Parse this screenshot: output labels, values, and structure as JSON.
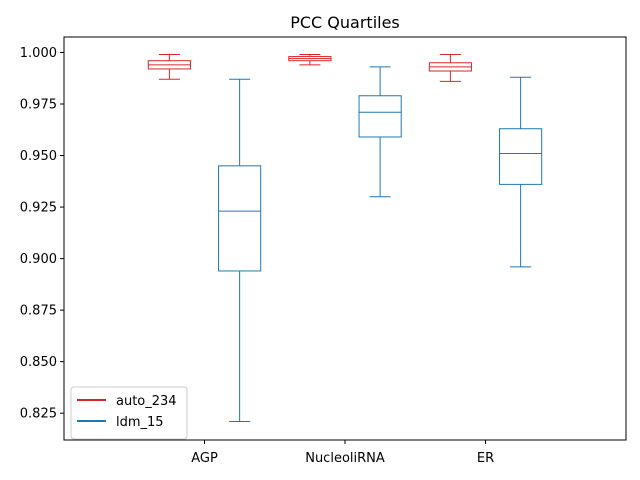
{
  "chart_data": {
    "type": "box",
    "title": "PCC Quartiles",
    "xlabel": "",
    "ylabel": "",
    "ylim": [
      0.812,
      1.0075
    ],
    "y_ticks": [
      0.825,
      0.85,
      0.875,
      0.9,
      0.925,
      0.95,
      0.975,
      1.0
    ],
    "y_tick_labels": [
      "0.825",
      "0.850",
      "0.875",
      "0.900",
      "0.925",
      "0.950",
      "0.975",
      "1.000"
    ],
    "categories": [
      "AGP",
      "NucleoliRNA",
      "ER"
    ],
    "grid": false,
    "legend_position": "bottom-left",
    "series": [
      {
        "name": "auto_234",
        "color": "#d62728",
        "boxes": [
          {
            "whislo": 0.987,
            "q1": 0.992,
            "med": 0.994,
            "q3": 0.996,
            "whishi": 0.999
          },
          {
            "whislo": 0.994,
            "q1": 0.996,
            "med": 0.997,
            "q3": 0.998,
            "whishi": 0.999
          },
          {
            "whislo": 0.986,
            "q1": 0.991,
            "med": 0.993,
            "q3": 0.995,
            "whishi": 0.999
          }
        ]
      },
      {
        "name": "ldm_15",
        "color": "#1f77b4",
        "boxes": [
          {
            "whislo": 0.821,
            "q1": 0.894,
            "med": 0.923,
            "q3": 0.945,
            "whishi": 0.987
          },
          {
            "whislo": 0.93,
            "q1": 0.959,
            "med": 0.971,
            "q3": 0.979,
            "whishi": 0.993
          },
          {
            "whislo": 0.896,
            "q1": 0.936,
            "med": 0.951,
            "q3": 0.963,
            "whishi": 0.988
          }
        ]
      }
    ]
  }
}
